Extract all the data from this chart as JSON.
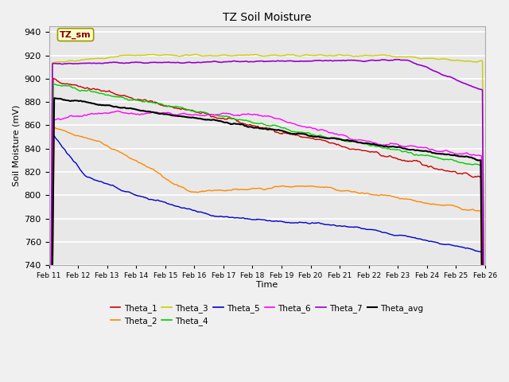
{
  "title": "TZ Soil Moisture",
  "xlabel": "Time",
  "ylabel": "Soil Moisture (mV)",
  "ylim": [
    740,
    945
  ],
  "yticks": [
    740,
    760,
    780,
    800,
    820,
    840,
    860,
    880,
    900,
    920,
    940
  ],
  "x_labels": [
    "Feb 11",
    "Feb 12",
    "Feb 13",
    "Feb 14",
    "Feb 15",
    "Feb 16",
    "Feb 17",
    "Feb 18",
    "Feb 19",
    "Feb 20",
    "Feb 21",
    "Feb 22",
    "Feb 23",
    "Feb 24",
    "Feb 25",
    "Feb 26"
  ],
  "background_color": "#e8e8e8",
  "grid_color": "#ffffff",
  "fig_bg": "#f0f0f0",
  "legend_label": "TZ_sm",
  "legend_box_color": "#ffffcc",
  "legend_text_color": "#800000",
  "legend_box_edge": "#999900",
  "series": {
    "Theta_1": {
      "color": "#cc0000"
    },
    "Theta_2": {
      "color": "#ff8800"
    },
    "Theta_3": {
      "color": "#cccc00"
    },
    "Theta_4": {
      "color": "#00cc00"
    },
    "Theta_5": {
      "color": "#0000cc"
    },
    "Theta_6": {
      "color": "#ff00ff"
    },
    "Theta_7": {
      "color": "#9900cc"
    },
    "Theta_avg": {
      "color": "#000000"
    }
  }
}
